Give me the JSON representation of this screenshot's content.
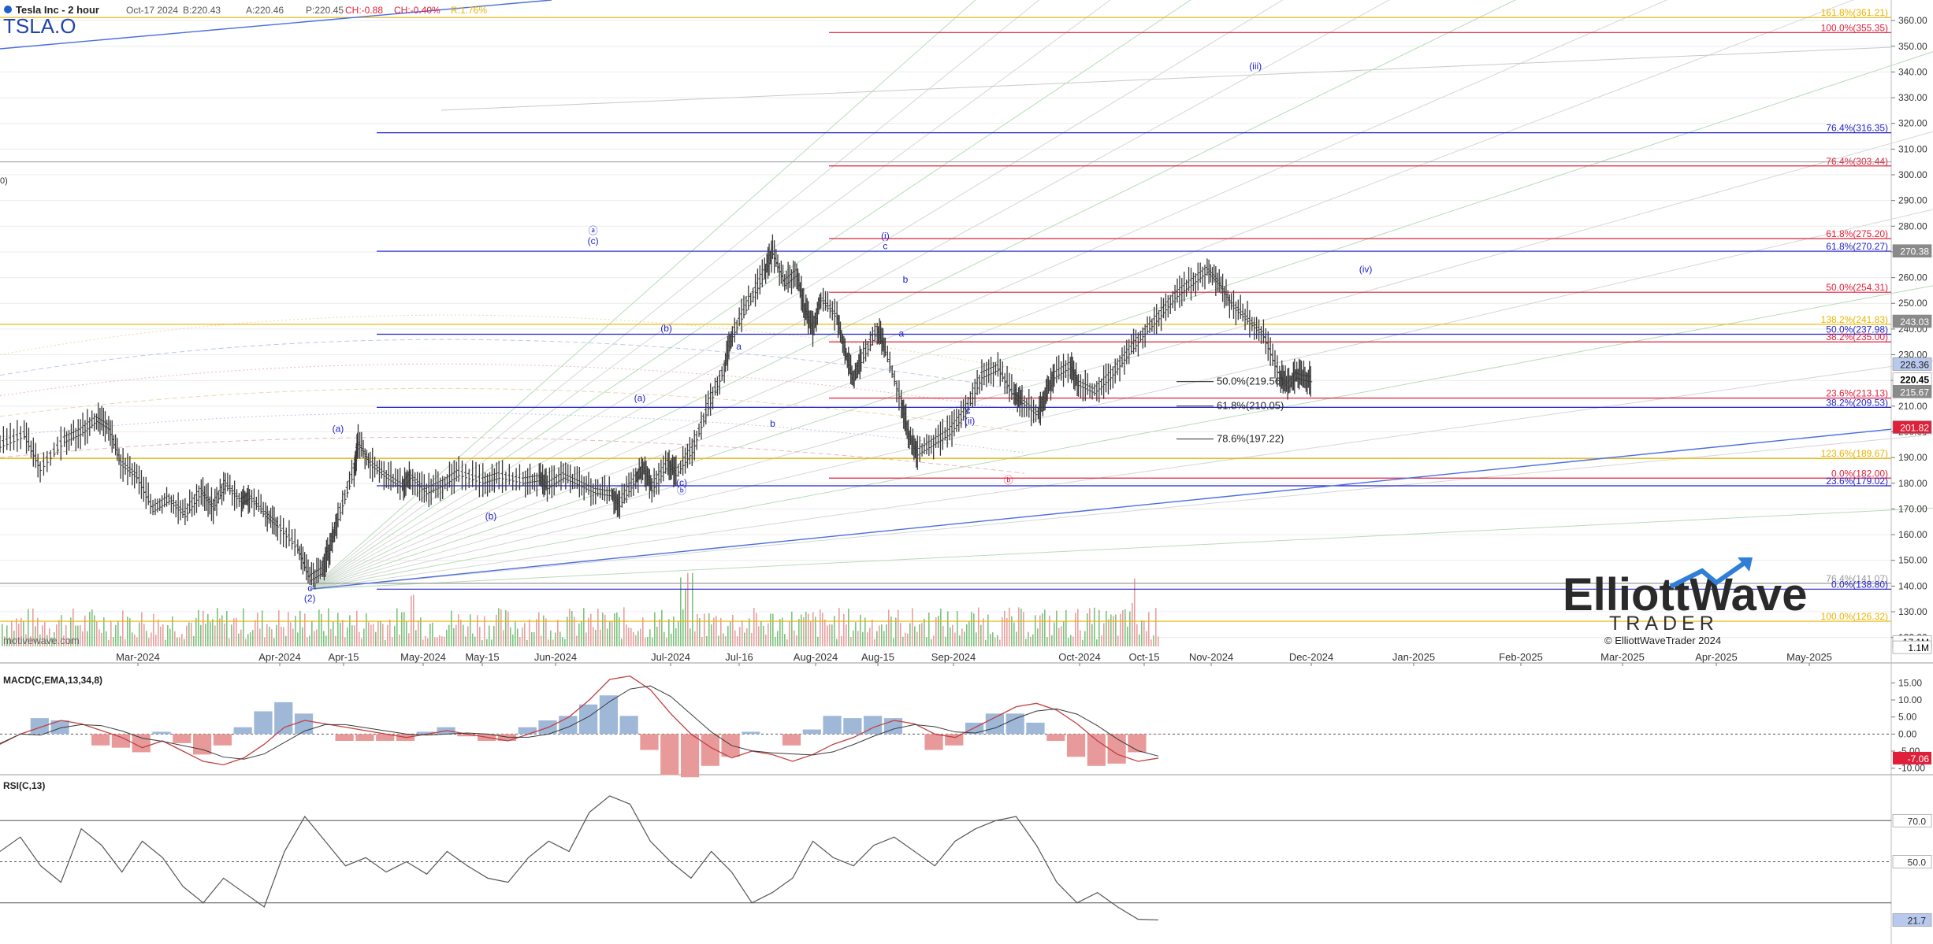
{
  "header": {
    "title": "Tesla Inc - 2 hour",
    "symbol": "TSLA.O",
    "date": "Oct-17 2024",
    "bid": "B:220.43",
    "ask": "A:220.46",
    "price": "P:220.45",
    "change": "CH:-0.88",
    "change_pct": "CH:-0.40%",
    "range": "R:1.76%",
    "left_stub": "0)"
  },
  "watermark": "motivewave.com",
  "logo": {
    "line1": "ElliottWave",
    "line2": "TRADER",
    "copyright": "© ElliottWaveTrader 2024"
  },
  "colors": {
    "price": "#3a3a3a",
    "blue": "#1f1fc8",
    "red": "#e0203a",
    "gold": "#e8b400",
    "vol_up": "#7ec27e",
    "vol_down": "#e8a0a0",
    "grid": "#ececec"
  },
  "chart_data": [
    {
      "type": "line",
      "name": "price",
      "ylim": [
        115,
        368
      ],
      "right_axis_ticks": [
        "360.00",
        "350.00",
        "340.00",
        "330.00",
        "320.00",
        "310.00",
        "300.00",
        "290.00",
        "280.00",
        "270.00",
        "260.00",
        "250.00",
        "240.00",
        "230.00",
        "220.00",
        "210.00",
        "200.00",
        "190.00",
        "180.00",
        "170.00",
        "160.00",
        "150.00",
        "140.00",
        "130.00",
        "120.00"
      ],
      "x_labels": [
        "Mar-2024",
        "Apr-2024",
        "Apr-15",
        "May-2024",
        "May-15",
        "Jun-2024",
        "Jul-2024",
        "Jul-16",
        "Aug-2024",
        "Aug-15",
        "Sep-2024",
        "Oct-2024",
        "Oct-15",
        "Nov-2024",
        "Dec-2024",
        "Jan-2025",
        "Feb-2025",
        "Mar-2025",
        "Apr-2025",
        "May-2025"
      ],
      "price_path": [
        [
          0,
          195
        ],
        [
          0.03,
          199
        ],
        [
          0.05,
          186
        ],
        [
          0.08,
          197
        ],
        [
          0.1,
          200
        ],
        [
          0.12,
          205
        ],
        [
          0.135,
          202
        ],
        [
          0.15,
          188
        ],
        [
          0.17,
          183
        ],
        [
          0.19,
          170
        ],
        [
          0.21,
          174
        ],
        [
          0.23,
          168
        ],
        [
          0.25,
          177
        ],
        [
          0.265,
          171
        ],
        [
          0.28,
          180
        ],
        [
          0.3,
          173
        ],
        [
          0.31,
          175
        ],
        [
          0.33,
          168
        ],
        [
          0.345,
          164
        ],
        [
          0.37,
          155
        ],
        [
          0.385,
          143
        ],
        [
          0.4,
          146
        ],
        [
          0.41,
          155
        ],
        [
          0.42,
          167
        ],
        [
          0.44,
          185
        ],
        [
          0.445,
          196
        ],
        [
          0.46,
          188
        ],
        [
          0.48,
          183
        ],
        [
          0.5,
          179
        ],
        [
          0.51,
          183
        ],
        [
          0.53,
          177
        ],
        [
          0.55,
          180
        ],
        [
          0.57,
          184
        ],
        [
          0.6,
          181
        ],
        [
          0.62,
          183
        ],
        [
          0.65,
          181
        ],
        [
          0.67,
          182
        ],
        [
          0.68,
          179
        ],
        [
          0.7,
          183
        ],
        [
          0.72,
          180
        ],
        [
          0.74,
          177
        ],
        [
          0.76,
          176
        ],
        [
          0.77,
          172
        ],
        [
          0.79,
          182
        ],
        [
          0.8,
          186
        ],
        [
          0.81,
          178
        ],
        [
          0.83,
          188
        ],
        [
          0.84,
          184
        ],
        [
          0.86,
          193
        ],
        [
          0.88,
          210
        ],
        [
          0.9,
          225
        ],
        [
          0.91,
          238
        ],
        [
          0.93,
          250
        ],
        [
          0.95,
          262
        ],
        [
          0.96,
          270
        ],
        [
          0.975,
          258
        ],
        [
          0.99,
          262
        ],
        [
          1.0,
          248
        ],
        [
          1.01,
          240
        ],
        [
          1.02,
          252
        ],
        [
          1.04,
          245
        ],
        [
          1.05,
          232
        ],
        [
          1.06,
          220
        ],
        [
          1.07,
          228
        ],
        [
          1.09,
          240
        ],
        [
          1.1,
          232
        ],
        [
          1.12,
          212
        ],
        [
          1.13,
          198
        ],
        [
          1.14,
          192
        ],
        [
          1.16,
          196
        ],
        [
          1.18,
          200
        ],
        [
          1.2,
          208
        ],
        [
          1.22,
          222
        ],
        [
          1.24,
          225
        ],
        [
          1.26,
          214
        ],
        [
          1.27,
          212
        ],
        [
          1.29,
          207
        ],
        [
          1.3,
          215
        ],
        [
          1.31,
          222
        ],
        [
          1.33,
          226
        ],
        [
          1.34,
          219
        ],
        [
          1.36,
          216
        ],
        [
          1.38,
          222
        ],
        [
          1.4,
          230
        ],
        [
          1.42,
          238
        ],
        [
          1.44,
          245
        ],
        [
          1.46,
          253
        ],
        [
          1.48,
          258
        ],
        [
          1.5,
          263
        ],
        [
          1.515,
          258
        ],
        [
          1.53,
          250
        ],
        [
          1.55,
          244
        ],
        [
          1.57,
          238
        ],
        [
          1.59,
          222
        ],
        [
          1.6,
          218
        ],
        [
          1.61,
          222
        ],
        [
          1.62,
          221
        ],
        [
          1.63,
          220.45
        ]
      ],
      "fib_levels": [
        {
          "label": "161.8%(361.21)",
          "value": 361.21,
          "color": "gold"
        },
        {
          "label": "100.0%(355.35)",
          "value": 355.35,
          "color": "red"
        },
        {
          "label": "76.4%(316.35)",
          "value": 316.35,
          "color": "blue"
        },
        {
          "label": "76.4%(303.44)",
          "value": 303.44,
          "color": "red"
        },
        {
          "label": "61.8%(275.20)",
          "value": 275.2,
          "color": "red"
        },
        {
          "label": "61.8%(270.27)",
          "value": 270.27,
          "color": "blue"
        },
        {
          "label": "50.0%(254.31)",
          "value": 254.31,
          "color": "red"
        },
        {
          "label": "138.2%(241.83)",
          "value": 241.83,
          "color": "gold"
        },
        {
          "label": "50.0%(237.98)",
          "value": 237.98,
          "color": "blue"
        },
        {
          "label": "38.2%(235.00)",
          "value": 235.0,
          "color": "red"
        },
        {
          "label": "23.6%(213.13)",
          "value": 213.13,
          "color": "red"
        },
        {
          "label": "38.2%(209.53)",
          "value": 209.53,
          "color": "blue"
        },
        {
          "label": "123.6%(189.67)",
          "value": 189.67,
          "color": "gold"
        },
        {
          "label": "0.0%(182.00)",
          "value": 182.0,
          "color": "red"
        },
        {
          "label": "23.6%(179.02)",
          "value": 179.02,
          "color": "blue"
        },
        {
          "label": "76.4%(141.07)",
          "value": 141.07,
          "color": "gray"
        },
        {
          "label": "0.0%(138.80)",
          "value": 138.8,
          "color": "blue"
        },
        {
          "label": "100.0%(126.32)",
          "value": 126.32,
          "color": "gold"
        }
      ],
      "target_levels": [
        {
          "label": "50.0%(219.56)",
          "value": 219.56
        },
        {
          "label": "61.8%(210.05)",
          "value": 210.05
        },
        {
          "label": "78.6%(197.22)",
          "value": 197.22
        }
      ],
      "price_markers": [
        {
          "label": "270.38",
          "value": 270.38,
          "bg": "#8a8a8a",
          "fg": "#ffffff"
        },
        {
          "label": "243.03",
          "value": 243.03,
          "bg": "#8a8a8a",
          "fg": "#ffffff"
        },
        {
          "label": "226.36",
          "value": 226.36,
          "bg": "#b9c9ee",
          "fg": "#1a1a1a"
        },
        {
          "label": "220.45",
          "value": 220.45,
          "bg": "#ffffff",
          "fg": "#000000"
        },
        {
          "label": "215.67",
          "value": 215.67,
          "bg": "#8a8a8a",
          "fg": "#ffffff"
        },
        {
          "label": "201.82",
          "value": 201.82,
          "bg": "#e0203a",
          "fg": "#ffffff"
        },
        {
          "label": "17.1M",
          "value": 118.3,
          "bg": "#ffffff",
          "fg": "#000000"
        },
        {
          "label": "1.1M",
          "value": 116.2,
          "bg": "#ffffff",
          "fg": "#000000"
        }
      ],
      "wave_labels": [
        {
          "text": "c",
          "x": 0.385,
          "y": 138,
          "color": "blue"
        },
        {
          "text": "(2)",
          "x": 0.385,
          "y": 134,
          "color": "blue"
        },
        {
          "text": "(a)",
          "x": 0.42,
          "y": 200,
          "color": "blue"
        },
        {
          "text": "(b)",
          "x": 0.61,
          "y": 166,
          "color": "blue"
        },
        {
          "text": "ⓐ",
          "x": 0.737,
          "y": 277,
          "color": "blue"
        },
        {
          "text": "(c)",
          "x": 0.737,
          "y": 273,
          "color": "blue"
        },
        {
          "text": "(a)",
          "x": 0.795,
          "y": 212,
          "color": "blue"
        },
        {
          "text": "(b)",
          "x": 0.828,
          "y": 239,
          "color": "blue"
        },
        {
          "text": "(c)",
          "x": 0.847,
          "y": 179,
          "color": "blue"
        },
        {
          "text": "ⓑ",
          "x": 0.847,
          "y": 176,
          "color": "blue"
        },
        {
          "text": "a",
          "x": 0.918,
          "y": 232,
          "color": "blue"
        },
        {
          "text": "b",
          "x": 0.96,
          "y": 202,
          "color": "blue"
        },
        {
          "text": "(i)",
          "x": 1.1,
          "y": 275,
          "color": "blue"
        },
        {
          "text": "c",
          "x": 1.1,
          "y": 271,
          "color": "blue"
        },
        {
          "text": "b",
          "x": 1.125,
          "y": 258,
          "color": "blue"
        },
        {
          "text": "a",
          "x": 1.12,
          "y": 237,
          "color": "blue"
        },
        {
          "text": "c",
          "x": 1.203,
          "y": 207,
          "color": "blue"
        },
        {
          "text": "(ii)",
          "x": 1.205,
          "y": 203,
          "color": "blue"
        },
        {
          "text": "ⓑ",
          "x": 1.253,
          "y": 180,
          "color": "red"
        },
        {
          "text": "(iii)",
          "x": 1.56,
          "y": 341,
          "color": "blue"
        },
        {
          "text": "(iv)",
          "x": 1.697,
          "y": 262,
          "color": "blue"
        }
      ]
    },
    {
      "type": "line",
      "name": "MACD(C,EMA,13,34,8)",
      "ylim": [
        -11,
        19
      ],
      "ticks": [
        "15.00",
        "10.00",
        "5.00",
        "0.00",
        "-5.00",
        "-10.00"
      ],
      "last_value": "-7.06",
      "series": [
        {
          "values": [
            -3,
            0,
            2,
            4,
            3,
            1,
            -1,
            -4,
            -2,
            -5,
            -8,
            -9,
            -7,
            -3,
            2,
            4,
            3,
            2,
            1,
            0,
            -1,
            0,
            1,
            0,
            -1,
            -2,
            0,
            2,
            5,
            10,
            16,
            17,
            13,
            6,
            0,
            -4,
            -7,
            -5,
            -6,
            -8,
            -6,
            -3,
            -1,
            2,
            4,
            3,
            0,
            -1,
            2,
            5,
            8,
            9,
            7,
            3,
            -2,
            -6,
            -8,
            -7.06
          ]
        }
      ]
    },
    {
      "type": "line",
      "name": "RSI(C,13)",
      "ylim": [
        10,
        90
      ],
      "ticks": [
        "70.0",
        "50.0"
      ],
      "last_value": "21.7",
      "series": [
        {
          "values": [
            55,
            62,
            48,
            40,
            66,
            58,
            45,
            60,
            52,
            38,
            30,
            42,
            35,
            28,
            55,
            72,
            60,
            48,
            52,
            45,
            50,
            44,
            55,
            48,
            42,
            40,
            52,
            60,
            55,
            74,
            82,
            78,
            60,
            50,
            42,
            55,
            45,
            30,
            35,
            42,
            60,
            52,
            48,
            58,
            62,
            55,
            48,
            60,
            66,
            70,
            72,
            58,
            40,
            30,
            35,
            28,
            22,
            21.7
          ]
        }
      ]
    }
  ]
}
